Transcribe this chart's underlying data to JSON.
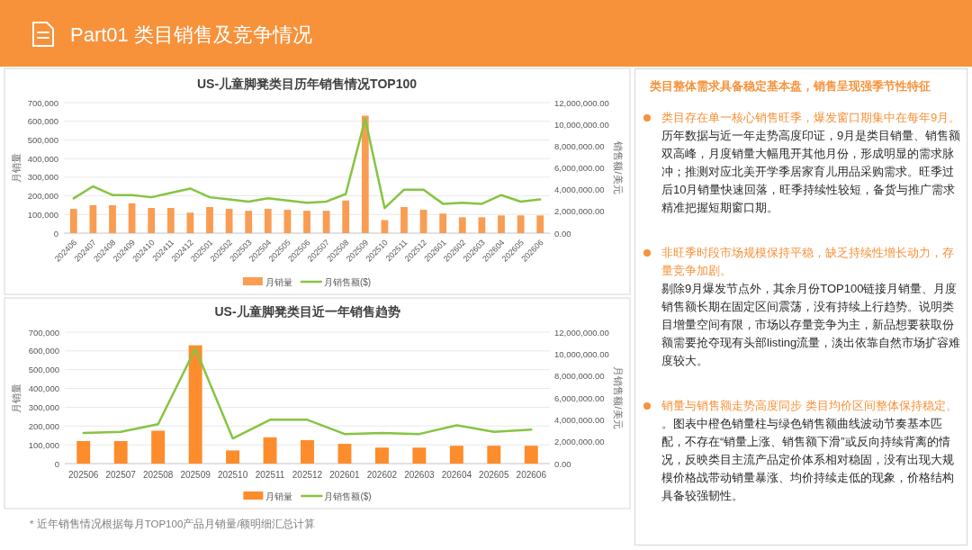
{
  "chart_data": [
    {
      "type": "other",
      "title": "Part01 类目销售及竞争情况"
    },
    {
      "type": "bar",
      "title": "US-儿童脚凳类目历年销售情况TOP100",
      "categories": [
        "202406",
        "202407",
        "202408",
        "202409",
        "202410",
        "202411",
        "202412",
        "202501",
        "202502",
        "202503",
        "202504",
        "202505",
        "202506",
        "202507",
        "202508",
        "202509",
        "202510",
        "202511",
        "202512",
        "202601",
        "202602",
        "202603",
        "202604",
        "202605",
        "202606"
      ],
      "series": [
        {
          "name": "月销量",
          "type": "bar",
          "color": "#f99d52",
          "values": [
            130000,
            150000,
            150000,
            160000,
            135000,
            135000,
            110000,
            140000,
            130000,
            120000,
            130000,
            125000,
            120000,
            120000,
            175000,
            630000,
            70000,
            140000,
            125000,
            105000,
            85000,
            85000,
            95000,
            95000,
            95000
          ]
        },
        {
          "name": "月销售额($)",
          "type": "line",
          "axis": "y2",
          "color": "#86c442",
          "values": [
            3200000,
            4300000,
            3500000,
            3500000,
            3300000,
            3700000,
            4100000,
            3300000,
            3100000,
            2900000,
            3200000,
            3000000,
            2800000,
            2900000,
            3600000,
            10500000,
            2300000,
            4000000,
            4000000,
            2700000,
            2800000,
            2700000,
            3500000,
            2900000,
            3100000
          ]
        }
      ],
      "ylabel": "月销量",
      "y2label": "销售额/美元",
      "ylim": [
        0,
        700000
      ],
      "yticks": [
        0,
        {
          "value": 100000,
          "label": "100,000"
        },
        {
          "value": 200000,
          "label": "200,000"
        },
        {
          "value": 300000,
          "label": "300,000"
        },
        {
          "value": 400000,
          "label": "400,000"
        },
        {
          "value": 500000,
          "label": "500,000"
        },
        {
          "value": 600000,
          "label": "600,000"
        },
        {
          "value": 700000,
          "label": "700,000"
        }
      ],
      "y2lim": [
        0,
        12000000
      ],
      "y2ticks": [
        {
          "value": 0,
          "label": "0.00"
        },
        {
          "value": 2000000,
          "label": "2,000,000.00"
        },
        {
          "value": 4000000,
          "label": "4,000,000.00"
        },
        {
          "value": 6000000,
          "label": "6,000,000.00"
        },
        {
          "value": 8000000,
          "label": "8,000,000.00"
        },
        {
          "value": 10000000,
          "label": "10,000,000.00"
        },
        {
          "value": 12000000,
          "label": "12,000,000.00"
        }
      ],
      "grid": "y",
      "legend": "bottom"
    },
    {
      "type": "bar",
      "title": "US-儿童脚凳类目近一年销售趋势",
      "categories": [
        "202506",
        "202507",
        "202508",
        "202509",
        "202510",
        "202511",
        "202512",
        "202601",
        "202602",
        "202603",
        "202604",
        "202605",
        "202606"
      ],
      "series": [
        {
          "name": "月销量",
          "type": "bar",
          "color": "#fd8c2c",
          "values": [
            120000,
            120000,
            175000,
            630000,
            70000,
            140000,
            125000,
            105000,
            85000,
            85000,
            95000,
            95000,
            95000
          ]
        },
        {
          "name": "月销售额($)",
          "type": "line",
          "axis": "y2",
          "color": "#86c442",
          "values": [
            2800000,
            2900000,
            3600000,
            10500000,
            2300000,
            4000000,
            4000000,
            2700000,
            2800000,
            2700000,
            3500000,
            2900000,
            3100000
          ]
        }
      ],
      "ylabel": "月销量",
      "y2label": "月销售额/美元",
      "ylim": [
        0,
        700000
      ],
      "yticks": [
        0,
        {
          "value": 100000,
          "label": "100,000"
        },
        {
          "value": 200000,
          "label": "200,000"
        },
        {
          "value": 300000,
          "label": "300,000"
        },
        {
          "value": 400000,
          "label": "400,000"
        },
        {
          "value": 500000,
          "label": "500,000"
        },
        {
          "value": 600000,
          "label": "600,000"
        },
        {
          "value": 700000,
          "label": "700,000"
        }
      ],
      "y2lim": [
        0,
        12000000
      ],
      "y2ticks": [
        {
          "value": 0,
          "label": "0.00"
        },
        {
          "value": 2000000,
          "label": "2,000,000.00"
        },
        {
          "value": 4000000,
          "label": "4,000,000.00"
        },
        {
          "value": 6000000,
          "label": "6,000,000.00"
        },
        {
          "value": 8000000,
          "label": "8,000,000.00"
        },
        {
          "value": 10000000,
          "label": "10,000,000.00"
        },
        {
          "value": 12000000,
          "label": "12,000,000.00"
        }
      ],
      "grid": "y",
      "legend": "bottom",
      "annotations": [
        "* 近年销售情况根据每月TOP100产品月销量/额明细汇总计算"
      ]
    },
    {
      "type": "other",
      "title": "类目整体需求具备稳定基本盘，销售呈现强季节性特征",
      "annotations": [
        "类目存在单一核心销售旺季，爆发窗口期集中在每年9月。",
        "历年数据与近一年走势高度印证，9月是类目销量、销售额双高峰，月度销量大幅甩开其他月份，形成明显的需求脉冲；推测对应北美开学季居家育儿用品采购需求。旺季过后10月销量快速回落，旺季持续性较短，备货与推广需求精准把握短期窗口期。",
        "非旺季时段市场规模保持平稳，缺乏持续性增长动力，存量竞争加剧。",
        "剔除9月爆发节点外，其余月份TOP100链接月销量、月度销售额长期在固定区间震荡，没有持续上行趋势。说明类目增量空间有限，市场以存量竞争为主，新品想要获取份额需要抢夺现有头部listing流量，淡出依靠自然市场扩容难度较大。",
        "销量与销售额走势高度同步 类目均价区间整体保持稳定。",
        "。图表中橙色销量柱与绿色销售额曲线波动节奏基本匹配，不存在“销量上涨、销售额下滑”或反向持续背离的情况，反映类目主流产品定价体系相对稳固，没有出现大规模价格战带动销量暴涨、均价持续走低的现象，价格结构具备较强韧性。"
      ]
    }
  ]
}
